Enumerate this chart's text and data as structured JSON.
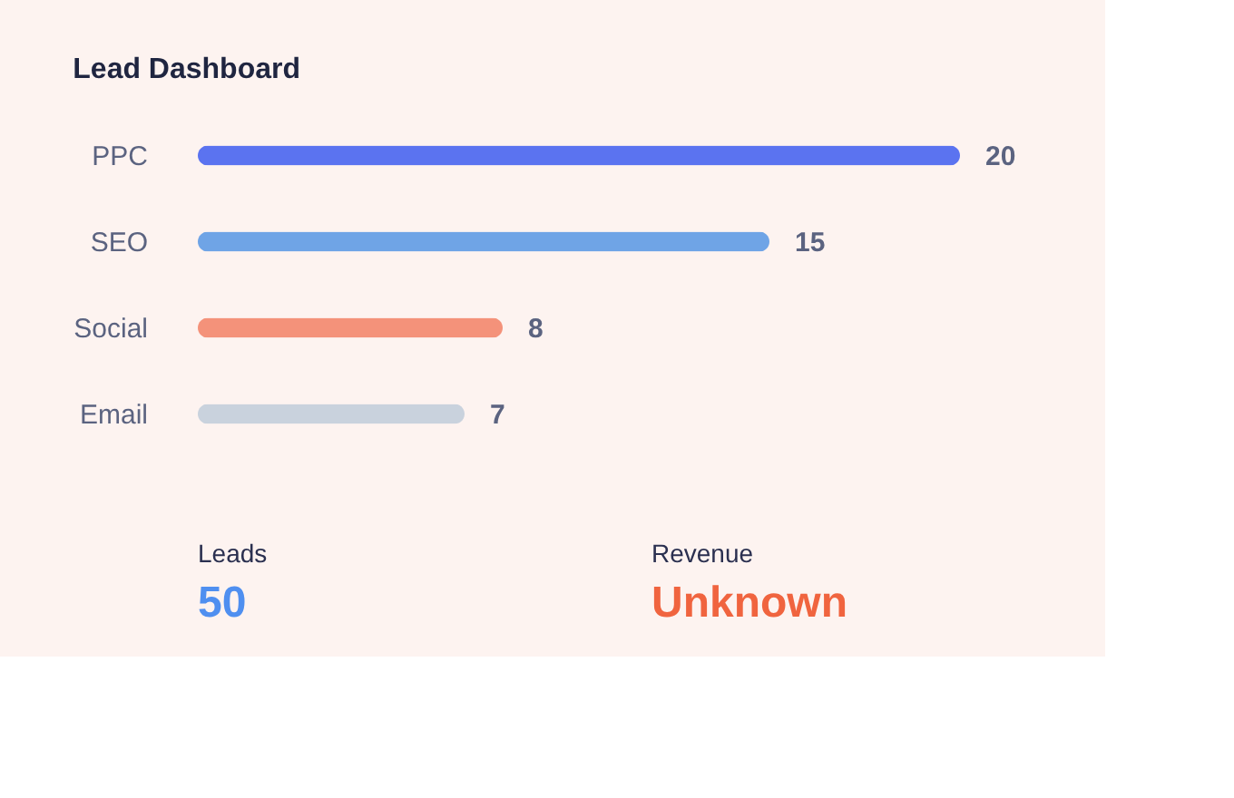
{
  "chart_data": {
    "type": "bar",
    "title": "Lead Dashboard",
    "orientation": "horizontal",
    "data_labels": true,
    "xlim": [
      0,
      20
    ],
    "categories": [
      "PPC",
      "SEO",
      "Social",
      "Email"
    ],
    "values": [
      20,
      15,
      8,
      7
    ],
    "colors": [
      "#5b73f0",
      "#6fa4e6",
      "#f4927a",
      "#c9d2dd"
    ],
    "annotations": [
      "Leads",
      "50",
      "Revenue",
      "Unknown"
    ]
  }
}
